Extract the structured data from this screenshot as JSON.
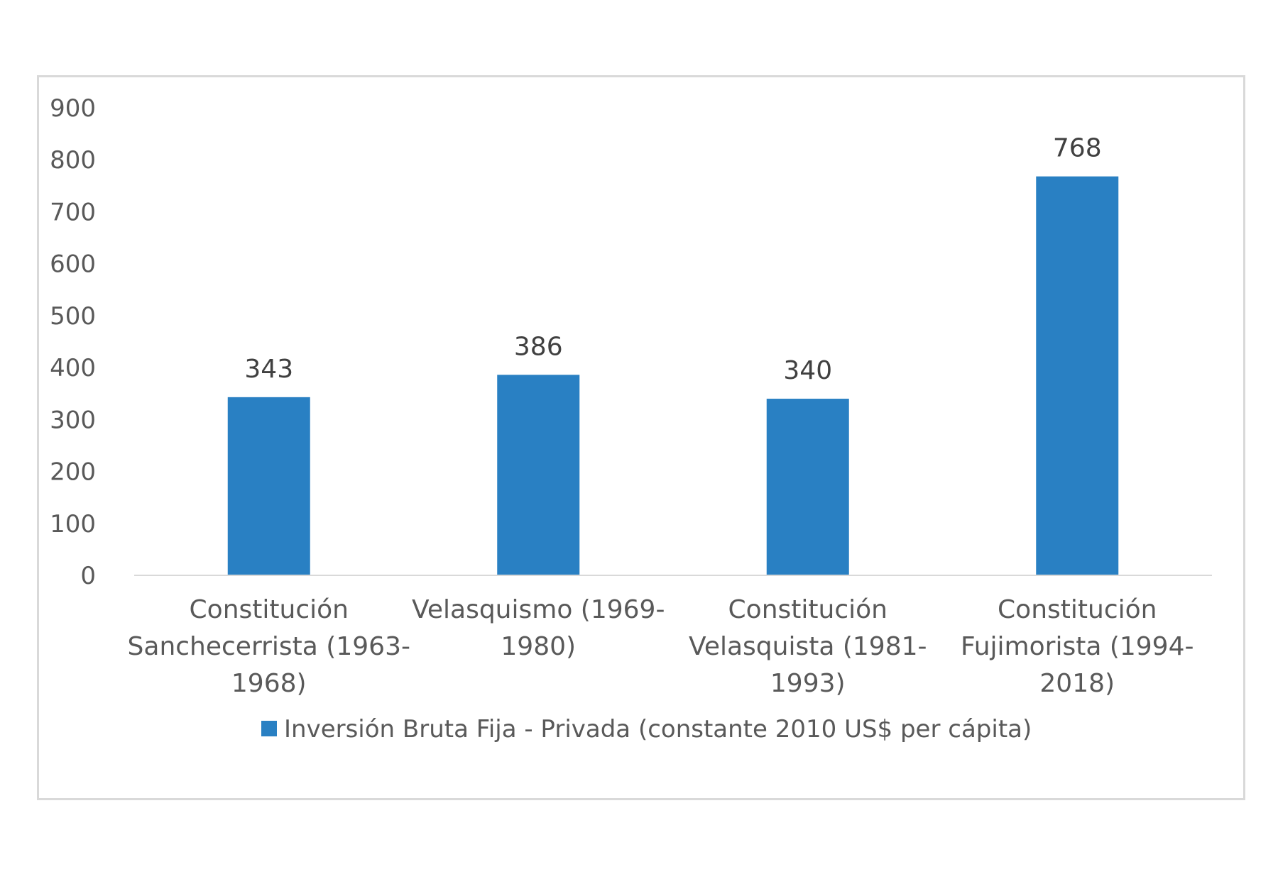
{
  "chart_data": {
    "type": "bar",
    "categories": [
      [
        "Constitución",
        "Sanchecerrista (1963-",
        "1968)"
      ],
      [
        "Velasquismo (1969-",
        "1980)"
      ],
      [
        "Constitución",
        "Velasquista (1981-",
        "1993)"
      ],
      [
        "Constitución",
        "Fujimorista (1994-",
        "2018)"
      ]
    ],
    "series": [
      {
        "name": "Inversión Bruta Fija - Privada (constante 2010 US$ per cápita)",
        "values": [
          343,
          386,
          340,
          768
        ],
        "color": "#2980c3"
      }
    ],
    "data_labels": [
      "343",
      "386",
      "340",
      "768"
    ],
    "ylim": [
      0,
      900
    ],
    "yticks": [
      "0",
      "100",
      "200",
      "300",
      "400",
      "500",
      "600",
      "700",
      "800",
      "900"
    ],
    "grid": false,
    "legend": "bottom"
  }
}
